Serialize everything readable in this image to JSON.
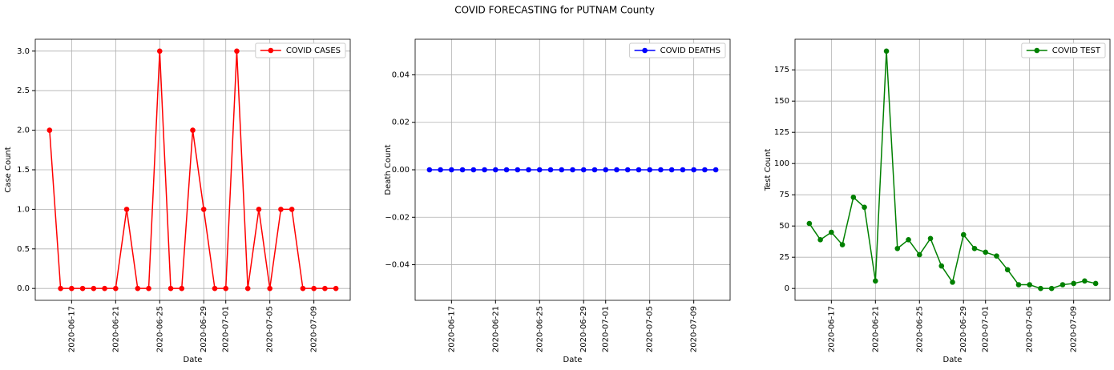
{
  "title": "COVID FORECASTING for PUTNAM County",
  "chart_data": [
    {
      "type": "line",
      "xlabel": "Date",
      "ylabel": "Case Count",
      "legend": "upper right",
      "grid": true,
      "x": [
        "2020-06-15",
        "2020-06-16",
        "2020-06-17",
        "2020-06-18",
        "2020-06-19",
        "2020-06-20",
        "2020-06-21",
        "2020-06-22",
        "2020-06-23",
        "2020-06-24",
        "2020-06-25",
        "2020-06-26",
        "2020-06-27",
        "2020-06-28",
        "2020-06-29",
        "2020-06-30",
        "2020-07-01",
        "2020-07-02",
        "2020-07-03",
        "2020-07-04",
        "2020-07-05",
        "2020-07-06",
        "2020-07-07",
        "2020-07-08",
        "2020-07-09",
        "2020-07-10",
        "2020-07-11"
      ],
      "series": [
        {
          "name": "COVID CASES",
          "color": "#ff0000",
          "values": [
            2,
            0,
            0,
            0,
            0,
            0,
            0,
            1,
            0,
            0,
            3,
            0,
            0,
            2,
            1,
            0,
            0,
            3,
            0,
            1,
            0,
            1,
            1,
            0,
            0,
            0,
            0
          ]
        }
      ],
      "xlim": [
        "2020-06-13T16:48",
        "2020-07-12T07:12"
      ],
      "xticks": [
        "2020-06-17",
        "2020-06-21",
        "2020-06-25",
        "2020-06-29",
        "2020-07-01",
        "2020-07-05",
        "2020-07-09"
      ],
      "ylim": [
        -0.15,
        3.15
      ],
      "yticks": [
        {
          "value": 0,
          "label": "0.0"
        },
        {
          "value": 0.5,
          "label": "0.5"
        },
        {
          "value": 1,
          "label": "1.0"
        },
        {
          "value": 1.5,
          "label": "1.5"
        },
        {
          "value": 2,
          "label": "2.0"
        },
        {
          "value": 2.5,
          "label": "2.5"
        },
        {
          "value": 3,
          "label": "3.0"
        }
      ]
    },
    {
      "type": "line",
      "xlabel": "Date",
      "ylabel": "Death Count",
      "legend": "upper right",
      "grid": true,
      "x": [
        "2020-06-15",
        "2020-06-16",
        "2020-06-17",
        "2020-06-18",
        "2020-06-19",
        "2020-06-20",
        "2020-06-21",
        "2020-06-22",
        "2020-06-23",
        "2020-06-24",
        "2020-06-25",
        "2020-06-26",
        "2020-06-27",
        "2020-06-28",
        "2020-06-29",
        "2020-06-30",
        "2020-07-01",
        "2020-07-02",
        "2020-07-03",
        "2020-07-04",
        "2020-07-05",
        "2020-07-06",
        "2020-07-07",
        "2020-07-08",
        "2020-07-09",
        "2020-07-10",
        "2020-07-11"
      ],
      "series": [
        {
          "name": "COVID DEATHS",
          "color": "#0000ff",
          "values": [
            0,
            0,
            0,
            0,
            0,
            0,
            0,
            0,
            0,
            0,
            0,
            0,
            0,
            0,
            0,
            0,
            0,
            0,
            0,
            0,
            0,
            0,
            0,
            0,
            0,
            0,
            0
          ]
        }
      ],
      "xlim": [
        "2020-06-13T16:48",
        "2020-07-12T07:12"
      ],
      "xticks": [
        "2020-06-17",
        "2020-06-21",
        "2020-06-25",
        "2020-06-29",
        "2020-07-01",
        "2020-07-05",
        "2020-07-09"
      ],
      "ylim": [
        -0.055,
        0.055
      ],
      "yticks": [
        {
          "value": -0.04,
          "label": "−0.04"
        },
        {
          "value": -0.02,
          "label": "−0.02"
        },
        {
          "value": 0,
          "label": "0.00"
        },
        {
          "value": 0.02,
          "label": "0.02"
        },
        {
          "value": 0.04,
          "label": "0.04"
        }
      ]
    },
    {
      "type": "line",
      "xlabel": "Date",
      "ylabel": "Test Count",
      "legend": "upper right",
      "grid": true,
      "x": [
        "2020-06-15",
        "2020-06-16",
        "2020-06-17",
        "2020-06-18",
        "2020-06-19",
        "2020-06-20",
        "2020-06-21",
        "2020-06-22",
        "2020-06-23",
        "2020-06-24",
        "2020-06-25",
        "2020-06-26",
        "2020-06-27",
        "2020-06-28",
        "2020-06-29",
        "2020-06-30",
        "2020-07-01",
        "2020-07-02",
        "2020-07-03",
        "2020-07-04",
        "2020-07-05",
        "2020-07-06",
        "2020-07-07",
        "2020-07-08",
        "2020-07-09",
        "2020-07-10",
        "2020-07-11"
      ],
      "series": [
        {
          "name": "COVID TEST",
          "color": "#008000",
          "values": [
            52,
            39,
            45,
            35,
            73,
            65,
            6,
            190,
            32,
            39,
            27,
            40,
            18,
            5,
            43,
            32,
            29,
            26,
            15,
            3,
            3,
            0,
            0,
            3,
            4,
            6,
            4
          ]
        }
      ],
      "xlim": [
        "2020-06-13T16:48",
        "2020-07-12T07:12"
      ],
      "xticks": [
        "2020-06-17",
        "2020-06-21",
        "2020-06-25",
        "2020-06-29",
        "2020-07-01",
        "2020-07-05",
        "2020-07-09"
      ],
      "ylim": [
        -9.5,
        199.5
      ],
      "yticks": [
        0,
        25,
        50,
        75,
        100,
        125,
        150,
        175
      ]
    }
  ]
}
